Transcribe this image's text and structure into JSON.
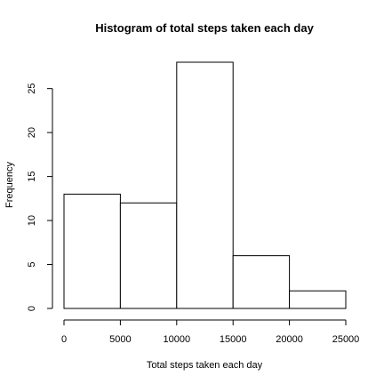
{
  "chart_data": {
    "type": "bar",
    "title": "Histogram of total steps taken each day",
    "xlabel": "Total steps taken each day",
    "ylabel": "Frequency",
    "bins": [
      {
        "from": 0,
        "to": 5000,
        "count": 13
      },
      {
        "from": 5000,
        "to": 10000,
        "count": 12
      },
      {
        "from": 10000,
        "to": 15000,
        "count": 28
      },
      {
        "from": 15000,
        "to": 20000,
        "count": 6
      },
      {
        "from": 20000,
        "to": 25000,
        "count": 2
      }
    ],
    "xlim": [
      0,
      25000
    ],
    "ylim": [
      0,
      28
    ],
    "x_ticks": [
      "0",
      "5000",
      "10000",
      "15000",
      "20000",
      "25000"
    ],
    "y_ticks": [
      "0",
      "5",
      "10",
      "15",
      "20",
      "25"
    ],
    "grid": false,
    "bar_fill": "#ffffff",
    "bar_stroke": "#000000"
  }
}
